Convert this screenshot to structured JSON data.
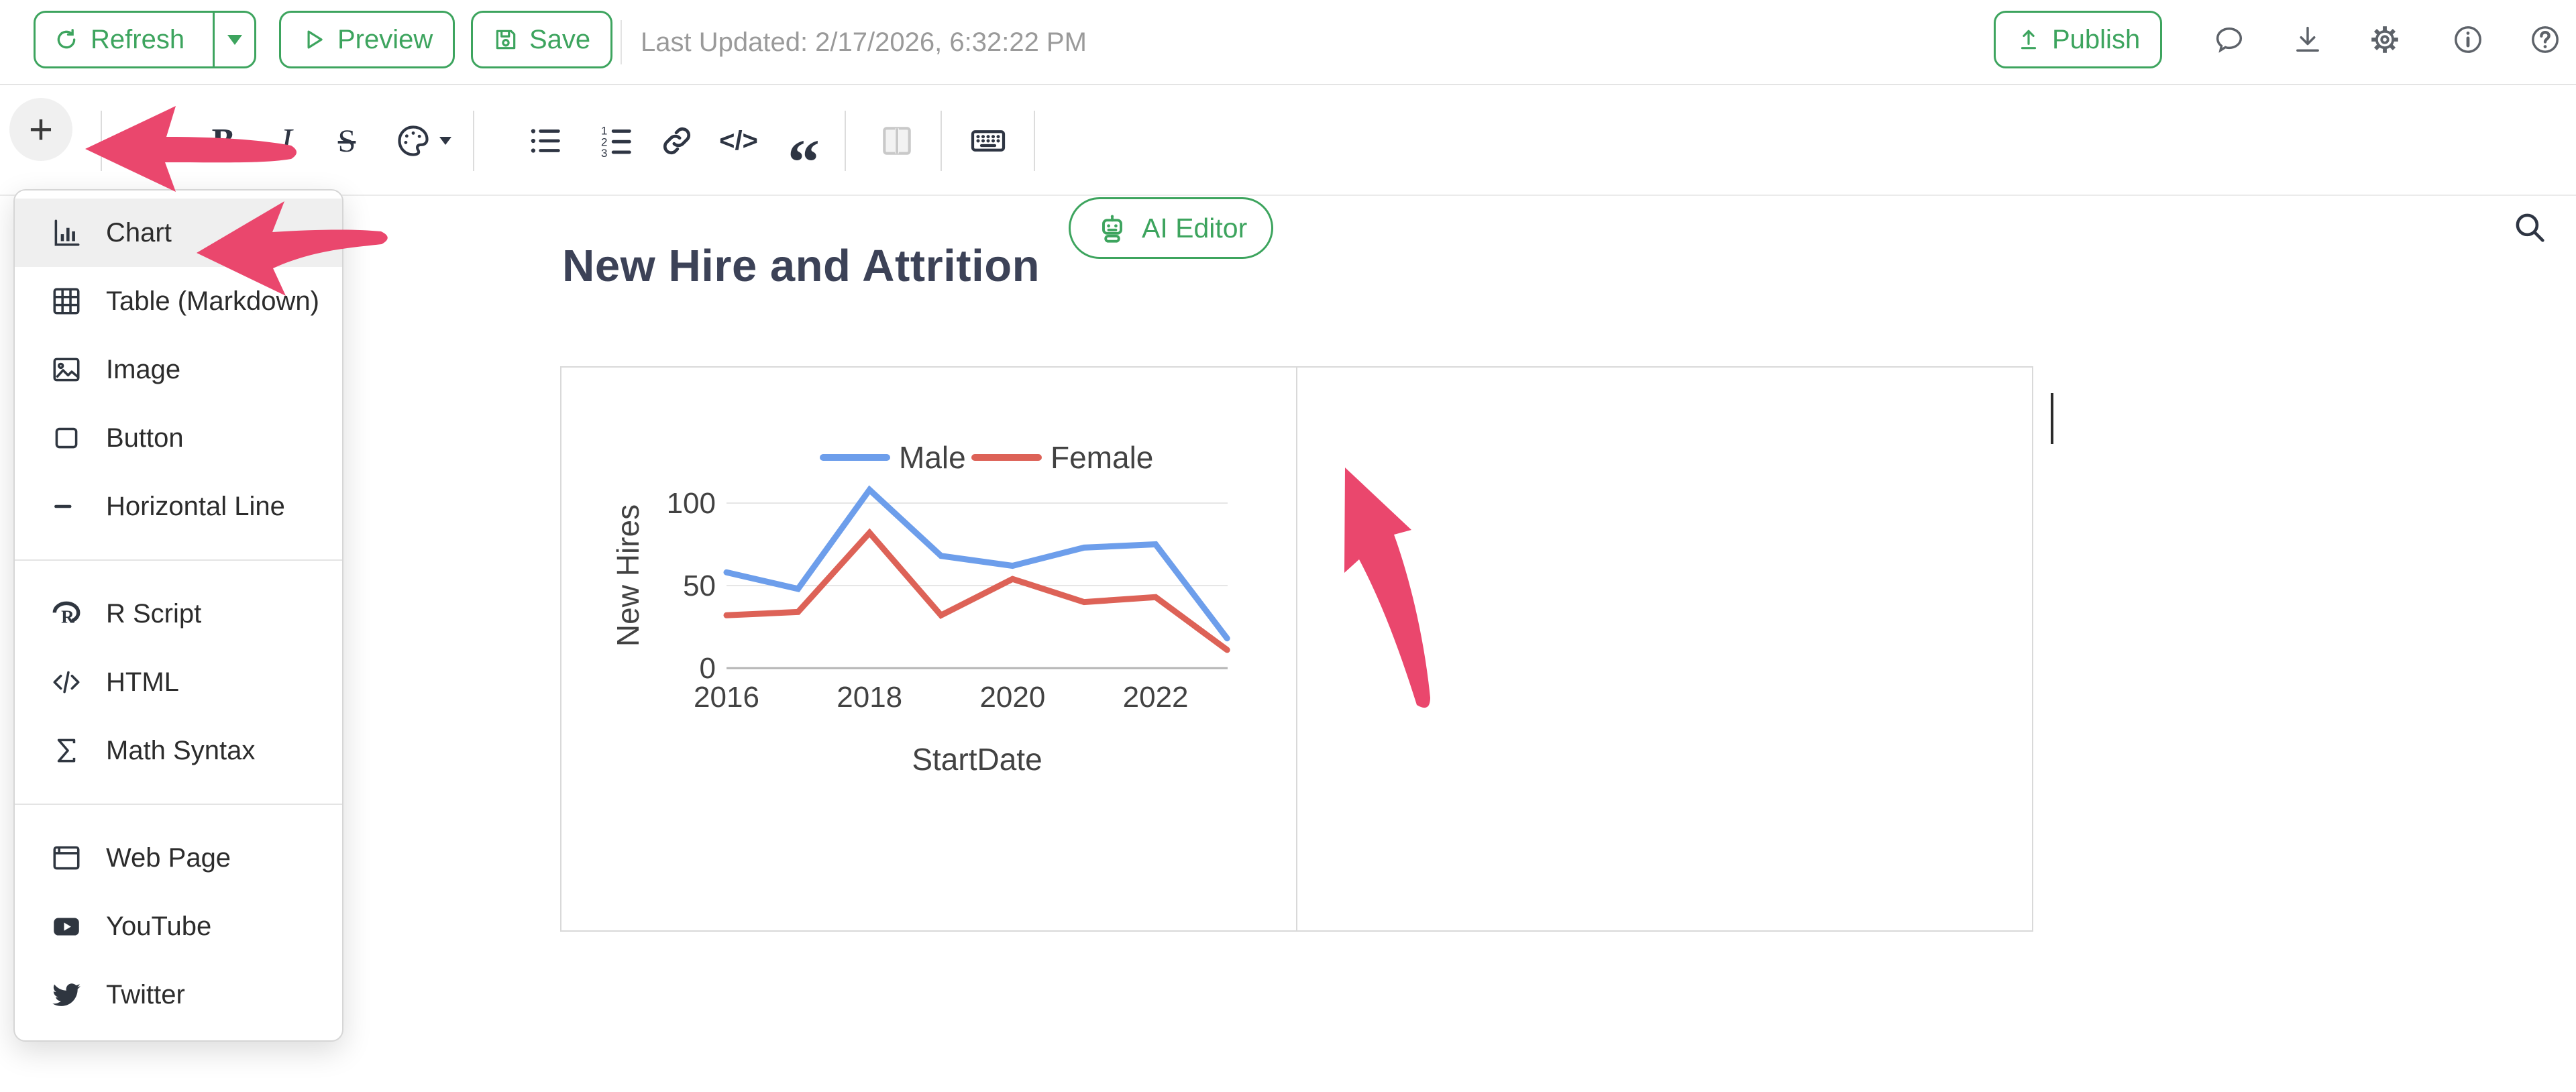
{
  "top_toolbar": {
    "refresh": "Refresh",
    "preview": "Preview",
    "save": "Save",
    "last_updated": "Last Updated: 2/17/2026, 6:32:22 PM",
    "publish": "Publish"
  },
  "format_toolbar": {
    "plus": "+",
    "bold": "B",
    "italic": "I",
    "strikethrough": "S",
    "code": "</>",
    "quote": "“",
    "ai_editor": "AI Editor"
  },
  "insert_menu": {
    "items": [
      {
        "icon": "bar-chart-icon",
        "label": "Chart",
        "highlighted": true
      },
      {
        "icon": "table-icon",
        "label": "Table (Markdown)"
      },
      {
        "icon": "image-icon",
        "label": "Image"
      },
      {
        "icon": "button-icon",
        "label": "Button"
      },
      {
        "icon": "horizontal-line-icon",
        "label": "Horizontal Line"
      },
      {
        "icon": "r-logo-icon",
        "label": "R Script"
      },
      {
        "icon": "code-icon",
        "label": "HTML"
      },
      {
        "icon": "sigma-icon",
        "label": "Math Syntax"
      },
      {
        "icon": "browser-icon",
        "label": "Web Page"
      },
      {
        "icon": "youtube-icon",
        "label": "YouTube"
      },
      {
        "icon": "twitter-icon",
        "label": "Twitter"
      }
    ]
  },
  "document": {
    "heading": "New Hire and Attrition"
  },
  "chart_data": {
    "type": "line",
    "x": [
      2016,
      2017,
      2018,
      2019,
      2020,
      2021,
      2022,
      2023
    ],
    "xticks": [
      2016,
      2018,
      2020,
      2022
    ],
    "yticks": [
      0,
      50,
      100
    ],
    "ylim": [
      0,
      110
    ],
    "xlabel": "StartDate",
    "ylabel": "New Hires",
    "grid": true,
    "legend_position": "top",
    "series": [
      {
        "name": "Male",
        "color": "#6d9eeb",
        "values": [
          58,
          48,
          108,
          68,
          62,
          73,
          75,
          18
        ]
      },
      {
        "name": "Female",
        "color": "#dd6257",
        "values": [
          32,
          34,
          82,
          32,
          54,
          40,
          43,
          11
        ]
      }
    ]
  },
  "colors": {
    "accent_green": "#3da45e",
    "annotation_pink": "#ea476d",
    "grid_line": "#e6e6e6",
    "axis_line": "#b5b5b5"
  }
}
